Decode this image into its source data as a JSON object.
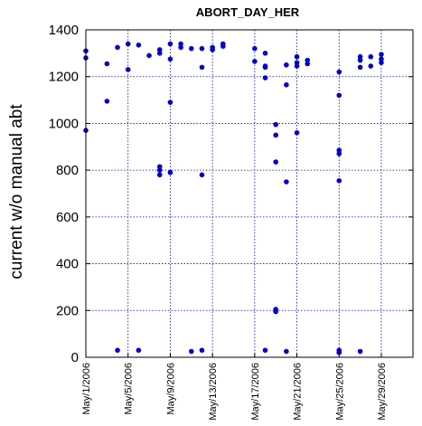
{
  "chart_data": {
    "type": "scatter",
    "title": "ABORT_DAY_HER",
    "xlabel": "",
    "ylabel": "current w/o manual abt",
    "ylim": [
      0,
      1400
    ],
    "yticks": [
      0,
      200,
      400,
      600,
      800,
      1000,
      1200,
      1400
    ],
    "xlim": [
      "2006-05-01",
      "2006-06-01"
    ],
    "xtick_labels": [
      "May/1/2006",
      "May/5/2006",
      "May/9/2006",
      "May/13/2006",
      "May/17/2006",
      "May/21/2006",
      "May/25/2006",
      "May/29/2006"
    ],
    "xtick_dates": [
      "2006-05-01",
      "2006-05-05",
      "2006-05-09",
      "2006-05-13",
      "2006-05-17",
      "2006-05-21",
      "2006-05-25",
      "2006-05-29"
    ],
    "grid": true,
    "marker_color": "#0000cc",
    "points": [
      {
        "x": "2006-05-01",
        "y": 1310
      },
      {
        "x": "2006-05-01",
        "y": 1280
      },
      {
        "x": "2006-05-01",
        "y": 970
      },
      {
        "x": "2006-05-03",
        "y": 1255
      },
      {
        "x": "2006-05-03",
        "y": 1095
      },
      {
        "x": "2006-05-04",
        "y": 1325
      },
      {
        "x": "2006-05-04",
        "y": 30
      },
      {
        "x": "2006-05-05",
        "y": 1340
      },
      {
        "x": "2006-05-05",
        "y": 1230
      },
      {
        "x": "2006-05-06",
        "y": 1335
      },
      {
        "x": "2006-05-06",
        "y": 30
      },
      {
        "x": "2006-05-07",
        "y": 1290
      },
      {
        "x": "2006-05-08",
        "y": 1315
      },
      {
        "x": "2006-05-08",
        "y": 1300
      },
      {
        "x": "2006-05-08",
        "y": 815
      },
      {
        "x": "2006-05-08",
        "y": 800
      },
      {
        "x": "2006-05-08",
        "y": 780
      },
      {
        "x": "2006-05-09",
        "y": 1340
      },
      {
        "x": "2006-05-09",
        "y": 1275
      },
      {
        "x": "2006-05-09",
        "y": 1090
      },
      {
        "x": "2006-05-09",
        "y": 790
      },
      {
        "x": "2006-05-10",
        "y": 1340
      },
      {
        "x": "2006-05-10",
        "y": 1325
      },
      {
        "x": "2006-05-11",
        "y": 1320
      },
      {
        "x": "2006-05-11",
        "y": 25
      },
      {
        "x": "2006-05-12",
        "y": 1320
      },
      {
        "x": "2006-05-12",
        "y": 1240
      },
      {
        "x": "2006-05-12",
        "y": 780
      },
      {
        "x": "2006-05-12",
        "y": 30
      },
      {
        "x": "2006-05-13",
        "y": 1325
      },
      {
        "x": "2006-05-13",
        "y": 1315
      },
      {
        "x": "2006-05-14",
        "y": 1340
      },
      {
        "x": "2006-05-14",
        "y": 1330
      },
      {
        "x": "2006-05-17",
        "y": 1320
      },
      {
        "x": "2006-05-17",
        "y": 1265
      },
      {
        "x": "2006-05-18",
        "y": 1300
      },
      {
        "x": "2006-05-18",
        "y": 1245
      },
      {
        "x": "2006-05-18",
        "y": 1240
      },
      {
        "x": "2006-05-18",
        "y": 1195
      },
      {
        "x": "2006-05-18",
        "y": 30
      },
      {
        "x": "2006-05-19",
        "y": 995
      },
      {
        "x": "2006-05-19",
        "y": 950
      },
      {
        "x": "2006-05-19",
        "y": 835
      },
      {
        "x": "2006-05-19",
        "y": 205
      },
      {
        "x": "2006-05-19",
        "y": 195
      },
      {
        "x": "2006-05-20",
        "y": 1250
      },
      {
        "x": "2006-05-20",
        "y": 1165
      },
      {
        "x": "2006-05-20",
        "y": 750
      },
      {
        "x": "2006-05-20",
        "y": 25
      },
      {
        "x": "2006-05-21",
        "y": 1285
      },
      {
        "x": "2006-05-21",
        "y": 1260
      },
      {
        "x": "2006-05-21",
        "y": 1245
      },
      {
        "x": "2006-05-21",
        "y": 960
      },
      {
        "x": "2006-05-22",
        "y": 1270
      },
      {
        "x": "2006-05-22",
        "y": 1255
      },
      {
        "x": "2006-05-25",
        "y": 1220
      },
      {
        "x": "2006-05-25",
        "y": 1120
      },
      {
        "x": "2006-05-25",
        "y": 885
      },
      {
        "x": "2006-05-25",
        "y": 870
      },
      {
        "x": "2006-05-25",
        "y": 755
      },
      {
        "x": "2006-05-25",
        "y": 30
      },
      {
        "x": "2006-05-25",
        "y": 20
      },
      {
        "x": "2006-05-27",
        "y": 1285
      },
      {
        "x": "2006-05-27",
        "y": 1270
      },
      {
        "x": "2006-05-27",
        "y": 1240
      },
      {
        "x": "2006-05-27",
        "y": 25
      },
      {
        "x": "2006-05-28",
        "y": 1285
      },
      {
        "x": "2006-05-28",
        "y": 1245
      },
      {
        "x": "2006-05-29",
        "y": 1295
      },
      {
        "x": "2006-05-29",
        "y": 1275
      },
      {
        "x": "2006-05-29",
        "y": 1260
      }
    ]
  }
}
